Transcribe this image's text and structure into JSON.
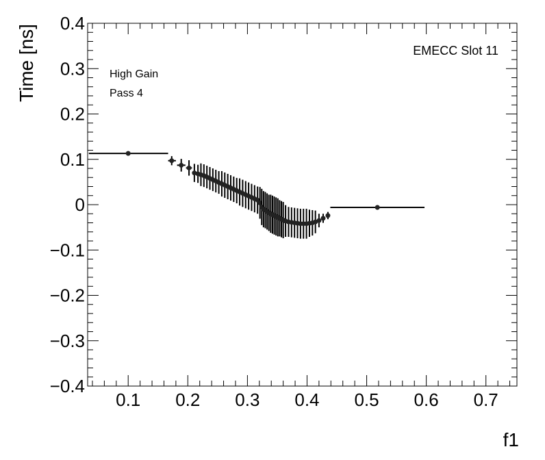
{
  "chart_data": {
    "type": "scatter",
    "xlabel": "f1",
    "ylabel": "Time [ns]",
    "xlim": [
      0.032,
      0.752
    ],
    "ylim": [
      -0.4,
      0.4
    ],
    "x_ticks": [
      0.1,
      0.2,
      0.3,
      0.4,
      0.5,
      0.6,
      0.7
    ],
    "x_tick_labels": [
      "0.1",
      "0.2",
      "0.3",
      "0.4",
      "0.5",
      "0.6",
      "0.7"
    ],
    "y_ticks": [
      -0.4,
      -0.3,
      -0.2,
      -0.1,
      0,
      0.1,
      0.2,
      0.3,
      0.4
    ],
    "y_tick_labels": [
      "−0.4",
      "−0.3",
      "−0.2",
      "−0.1",
      "0",
      "0.1",
      "0.2",
      "0.3",
      "0.4"
    ],
    "grid": false,
    "annotations": {
      "gain": "High Gain",
      "pass": "Pass 4",
      "slot": "EMECC Slot 11"
    },
    "points": [
      {
        "x": 0.1,
        "y": 0.113,
        "xerr": [
          0.034,
          0.167
        ],
        "yerr": 0.005
      },
      {
        "x": 0.173,
        "y": 0.097,
        "xerr": [
          0.167,
          0.18
        ],
        "yerr": 0.01
      },
      {
        "x": 0.189,
        "y": 0.087,
        "xerr": [
          0.182,
          0.196
        ],
        "yerr": 0.014
      },
      {
        "x": 0.202,
        "y": 0.081,
        "xerr": [
          0.197,
          0.207
        ],
        "yerr": 0.017
      },
      {
        "x": 0.211,
        "y": 0.07,
        "xerr": [
          0.208,
          0.214
        ],
        "yerr": 0.02
      },
      {
        "x": 0.217,
        "y": 0.068,
        "xerr": [
          0.215,
          0.219
        ],
        "yerr": 0.02
      },
      {
        "x": 0.222,
        "y": 0.066,
        "xerr": [
          0.22,
          0.224
        ],
        "yerr": 0.025
      },
      {
        "x": 0.227,
        "y": 0.064,
        "xerr": [
          0.225,
          0.229
        ],
        "yerr": 0.025
      },
      {
        "x": 0.232,
        "y": 0.061,
        "xerr": [
          0.23,
          0.234
        ],
        "yerr": 0.025
      },
      {
        "x": 0.237,
        "y": 0.058,
        "xerr": [
          0.235,
          0.239
        ],
        "yerr": 0.025
      },
      {
        "x": 0.242,
        "y": 0.055,
        "xerr": [
          0.24,
          0.244
        ],
        "yerr": 0.025
      },
      {
        "x": 0.247,
        "y": 0.052,
        "xerr": [
          0.245,
          0.249
        ],
        "yerr": 0.025
      },
      {
        "x": 0.252,
        "y": 0.049,
        "xerr": [
          0.25,
          0.254
        ],
        "yerr": 0.025
      },
      {
        "x": 0.257,
        "y": 0.046,
        "xerr": [
          0.255,
          0.259
        ],
        "yerr": 0.028
      },
      {
        "x": 0.262,
        "y": 0.043,
        "xerr": [
          0.26,
          0.264
        ],
        "yerr": 0.028
      },
      {
        "x": 0.267,
        "y": 0.04,
        "xerr": [
          0.265,
          0.269
        ],
        "yerr": 0.028
      },
      {
        "x": 0.272,
        "y": 0.037,
        "xerr": [
          0.27,
          0.274
        ],
        "yerr": 0.028
      },
      {
        "x": 0.277,
        "y": 0.034,
        "xerr": [
          0.275,
          0.279
        ],
        "yerr": 0.028
      },
      {
        "x": 0.282,
        "y": 0.031,
        "xerr": [
          0.28,
          0.284
        ],
        "yerr": 0.028
      },
      {
        "x": 0.287,
        "y": 0.028,
        "xerr": [
          0.285,
          0.289
        ],
        "yerr": 0.03
      },
      {
        "x": 0.292,
        "y": 0.025,
        "xerr": [
          0.29,
          0.294
        ],
        "yerr": 0.03
      },
      {
        "x": 0.297,
        "y": 0.022,
        "xerr": [
          0.295,
          0.299
        ],
        "yerr": 0.03
      },
      {
        "x": 0.302,
        "y": 0.019,
        "xerr": [
          0.3,
          0.304
        ],
        "yerr": 0.03
      },
      {
        "x": 0.307,
        "y": 0.016,
        "xerr": [
          0.305,
          0.309
        ],
        "yerr": 0.03
      },
      {
        "x": 0.312,
        "y": 0.013,
        "xerr": [
          0.31,
          0.314
        ],
        "yerr": 0.03
      },
      {
        "x": 0.317,
        "y": 0.01,
        "xerr": [
          0.315,
          0.319
        ],
        "yerr": 0.03
      },
      {
        "x": 0.321,
        "y": 0.004,
        "xerr": [
          0.32,
          0.322
        ],
        "yerr": 0.035
      },
      {
        "x": 0.324,
        "y": -0.005,
        "xerr": [
          0.323,
          0.325
        ],
        "yerr": 0.04
      },
      {
        "x": 0.327,
        "y": -0.01,
        "xerr": [
          0.326,
          0.328
        ],
        "yerr": 0.04
      },
      {
        "x": 0.33,
        "y": -0.012,
        "xerr": [
          0.329,
          0.331
        ],
        "yerr": 0.04
      },
      {
        "x": 0.333,
        "y": -0.015,
        "xerr": [
          0.332,
          0.334
        ],
        "yerr": 0.04
      },
      {
        "x": 0.336,
        "y": -0.018,
        "xerr": [
          0.335,
          0.337
        ],
        "yerr": 0.04
      },
      {
        "x": 0.339,
        "y": -0.02,
        "xerr": [
          0.338,
          0.34
        ],
        "yerr": 0.042
      },
      {
        "x": 0.342,
        "y": -0.022,
        "xerr": [
          0.341,
          0.343
        ],
        "yerr": 0.042
      },
      {
        "x": 0.345,
        "y": -0.024,
        "xerr": [
          0.344,
          0.346
        ],
        "yerr": 0.042
      },
      {
        "x": 0.348,
        "y": -0.026,
        "xerr": [
          0.347,
          0.349
        ],
        "yerr": 0.042
      },
      {
        "x": 0.351,
        "y": -0.028,
        "xerr": [
          0.35,
          0.352
        ],
        "yerr": 0.042
      },
      {
        "x": 0.354,
        "y": -0.03,
        "xerr": [
          0.353,
          0.355
        ],
        "yerr": 0.04
      },
      {
        "x": 0.357,
        "y": -0.032,
        "xerr": [
          0.356,
          0.358
        ],
        "yerr": 0.04
      },
      {
        "x": 0.36,
        "y": -0.034,
        "xerr": [
          0.359,
          0.361
        ],
        "yerr": 0.04
      },
      {
        "x": 0.364,
        "y": -0.036,
        "xerr": [
          0.362,
          0.366
        ],
        "yerr": 0.035
      },
      {
        "x": 0.369,
        "y": -0.038,
        "xerr": [
          0.367,
          0.371
        ],
        "yerr": 0.033
      },
      {
        "x": 0.374,
        "y": -0.039,
        "xerr": [
          0.372,
          0.376
        ],
        "yerr": 0.033
      },
      {
        "x": 0.379,
        "y": -0.04,
        "xerr": [
          0.377,
          0.381
        ],
        "yerr": 0.033
      },
      {
        "x": 0.384,
        "y": -0.041,
        "xerr": [
          0.382,
          0.386
        ],
        "yerr": 0.033
      },
      {
        "x": 0.389,
        "y": -0.042,
        "xerr": [
          0.387,
          0.391
        ],
        "yerr": 0.033
      },
      {
        "x": 0.394,
        "y": -0.042,
        "xerr": [
          0.392,
          0.396
        ],
        "yerr": 0.033
      },
      {
        "x": 0.399,
        "y": -0.042,
        "xerr": [
          0.397,
          0.401
        ],
        "yerr": 0.033
      },
      {
        "x": 0.404,
        "y": -0.041,
        "xerr": [
          0.402,
          0.406
        ],
        "yerr": 0.03
      },
      {
        "x": 0.409,
        "y": -0.04,
        "xerr": [
          0.407,
          0.411
        ],
        "yerr": 0.028
      },
      {
        "x": 0.414,
        "y": -0.038,
        "xerr": [
          0.412,
          0.416
        ],
        "yerr": 0.025
      },
      {
        "x": 0.42,
        "y": -0.035,
        "xerr": [
          0.418,
          0.422
        ],
        "yerr": 0.015
      },
      {
        "x": 0.427,
        "y": -0.03,
        "xerr": [
          0.424,
          0.43
        ],
        "yerr": 0.01
      },
      {
        "x": 0.435,
        "y": -0.024,
        "xerr": [
          0.432,
          0.438
        ],
        "yerr": 0.008
      },
      {
        "x": 0.518,
        "y": -0.006,
        "xerr": [
          0.439,
          0.597
        ],
        "yerr": 0.005
      }
    ]
  }
}
